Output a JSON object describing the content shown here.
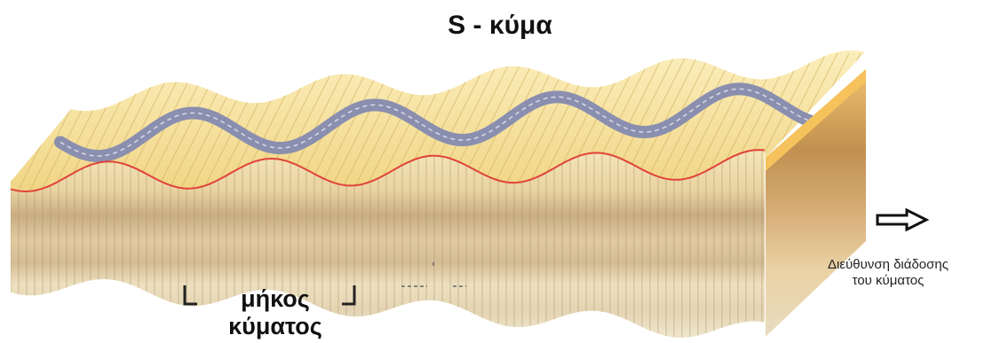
{
  "title": "S - κύμα",
  "wavelength_label_line1": "μήκος",
  "wavelength_label_line2": "κύματος",
  "direction_label_line1": "Διεύθυνση διάδοσης",
  "direction_label_line2": "του κύματος",
  "icons": {
    "direction": "right-arrow-icon"
  },
  "colors": {
    "top_surface": "#f3dc92",
    "top_highlight": "#fbedbe",
    "river": "#8a8fb0",
    "river_centerline": "#d8dae6",
    "crest_line": "#e0433a",
    "layer_light": "#f3e7c2",
    "layer_tan": "#d9c39b",
    "layer_brown": "#b08a55",
    "side_face": "#c9a064"
  }
}
